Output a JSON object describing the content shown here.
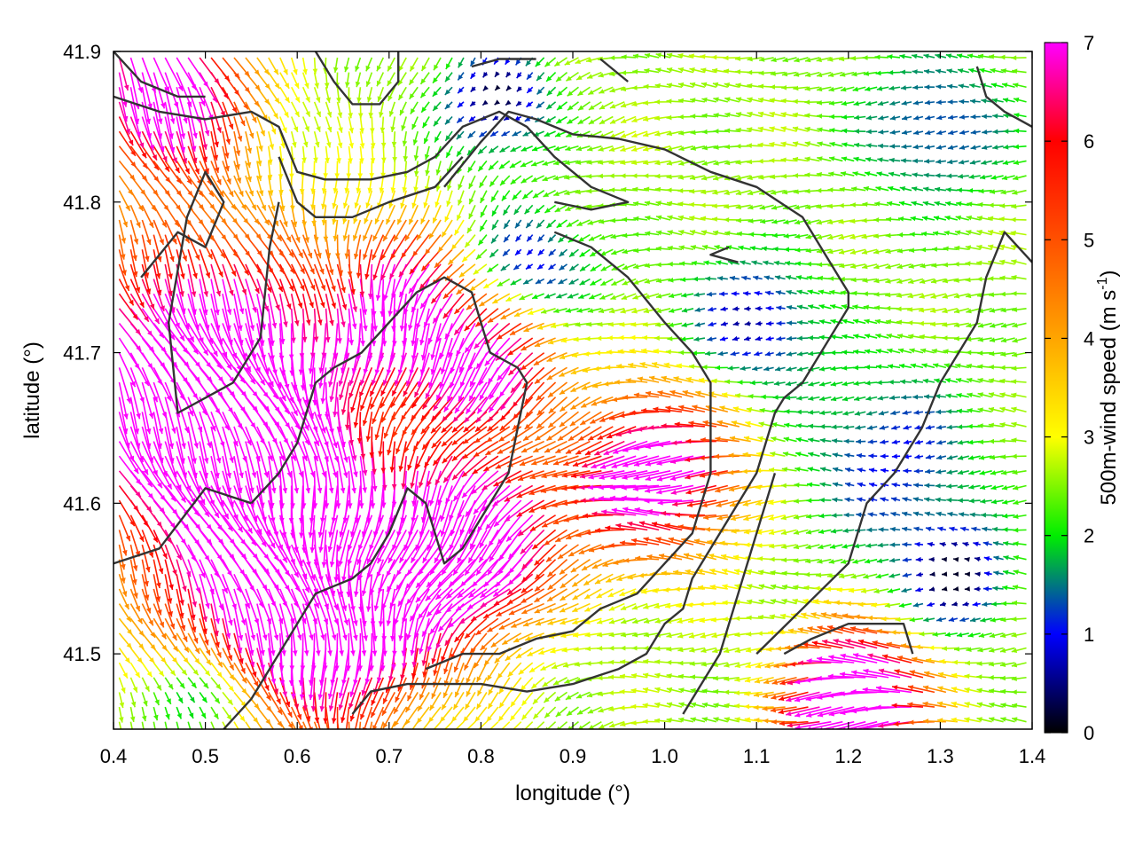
{
  "chart_data": {
    "type": "vector-field",
    "xlabel": "longitude (°)",
    "ylabel": "latitude (°)",
    "xlim": [
      0.4,
      1.4
    ],
    "ylim": [
      41.45,
      41.9
    ],
    "x_ticks": [
      0.4,
      0.5,
      0.6,
      0.7,
      0.8,
      0.9,
      1.0,
      1.1,
      1.2,
      1.3,
      1.4
    ],
    "x_tick_labels": [
      "0.4",
      "0.5",
      "0.6",
      "0.7",
      "0.8",
      "0.9",
      "1.0",
      "1.1",
      "1.2",
      "1.3",
      "1.4"
    ],
    "y_ticks": [
      41.5,
      41.6,
      41.7,
      41.8,
      41.9
    ],
    "y_tick_labels": [
      "41.5",
      "41.6",
      "41.7",
      "41.8",
      "41.9"
    ],
    "colorbar": {
      "label": "500m-wind speed (m s",
      "label_sup": "-1",
      "label_end": ")",
      "range": [
        0,
        7
      ],
      "ticks": [
        0,
        1,
        2,
        3,
        4,
        5,
        6,
        7
      ],
      "tick_labels": [
        "0",
        "1",
        "2",
        "3",
        "4",
        "5",
        "6",
        "7"
      ],
      "stops": [
        {
          "value": 0,
          "color": "#000000"
        },
        {
          "value": 1,
          "color": "#0000ff"
        },
        {
          "value": 2,
          "color": "#00ee00"
        },
        {
          "value": 3,
          "color": "#ffff00"
        },
        {
          "value": 4,
          "color": "#ffa500"
        },
        {
          "value": 5,
          "color": "#ff5000"
        },
        {
          "value": 6,
          "color": "#ff0000"
        },
        {
          "value": 7,
          "color": "#ff00ff"
        }
      ]
    },
    "grid": false,
    "wind_field_description": "Dense grid of wind arrows colored by 500 m wind speed; strong (~7 m/s) flow toward south-southeast in the western part, weaker westward flow (2-4 m/s) in the east.",
    "speed_centers": [
      {
        "lon": 0.5,
        "lat": 41.68,
        "speed": 7.5,
        "sigma": 0.11
      },
      {
        "lon": 0.62,
        "lat": 41.55,
        "speed": 7.0,
        "sigma": 0.1
      },
      {
        "lon": 0.8,
        "lat": 41.58,
        "speed": 6.5,
        "sigma": 0.06
      },
      {
        "lon": 1.22,
        "lat": 41.47,
        "speed": 7.0,
        "sigma": 0.05
      },
      {
        "lon": 1.0,
        "lat": 41.62,
        "speed": 5.8,
        "sigma": 0.06
      },
      {
        "lon": 0.72,
        "lat": 41.74,
        "speed": 5.2,
        "sigma": 0.05
      },
      {
        "lon": 0.82,
        "lat": 41.7,
        "speed": 5.5,
        "sigma": 0.05
      },
      {
        "lon": 0.45,
        "lat": 41.88,
        "speed": 5.5,
        "sigma": 0.06
      },
      {
        "lon": 0.85,
        "lat": 41.75,
        "speed": -2.5,
        "sigma": 0.05
      },
      {
        "lon": 0.82,
        "lat": 41.87,
        "speed": -2.5,
        "sigma": 0.04
      },
      {
        "lon": 1.1,
        "lat": 41.72,
        "speed": -2.0,
        "sigma": 0.05
      },
      {
        "lon": 1.25,
        "lat": 41.63,
        "speed": -1.6,
        "sigma": 0.07
      },
      {
        "lon": 1.32,
        "lat": 41.55,
        "speed": -2.5,
        "sigma": 0.04
      },
      {
        "lon": 0.5,
        "lat": 41.48,
        "speed": -2.5,
        "sigma": 0.04
      },
      {
        "lon": 1.3,
        "lat": 41.85,
        "speed": -1.5,
        "sigma": 0.06
      }
    ],
    "contours": [
      [
        [
          0.4,
          41.87
        ],
        [
          0.45,
          41.86
        ],
        [
          0.5,
          41.855
        ],
        [
          0.55,
          41.86
        ],
        [
          0.58,
          41.85
        ],
        [
          0.6,
          41.82
        ],
        [
          0.63,
          41.815
        ],
        [
          0.68,
          41.815
        ],
        [
          0.72,
          41.82
        ],
        [
          0.75,
          41.83
        ],
        [
          0.78,
          41.85
        ],
        [
          0.82,
          41.86
        ],
        [
          0.85,
          41.85
        ],
        [
          0.88,
          41.83
        ],
        [
          0.92,
          41.81
        ],
        [
          0.96,
          41.8
        ],
        [
          0.92,
          41.795
        ],
        [
          0.88,
          41.8
        ]
      ],
      [
        [
          0.4,
          41.9
        ],
        [
          0.43,
          41.88
        ],
        [
          0.47,
          41.87
        ],
        [
          0.5,
          41.87
        ]
      ],
      [
        [
          0.62,
          41.9
        ],
        [
          0.64,
          41.88
        ],
        [
          0.66,
          41.865
        ],
        [
          0.69,
          41.865
        ],
        [
          0.71,
          41.88
        ],
        [
          0.71,
          41.9
        ]
      ],
      [
        [
          0.79,
          41.89
        ],
        [
          0.82,
          41.895
        ],
        [
          0.86,
          41.895
        ]
      ],
      [
        [
          0.93,
          41.895
        ],
        [
          0.95,
          41.885
        ],
        [
          0.96,
          41.88
        ]
      ],
      [
        [
          0.76,
          41.81
        ],
        [
          0.8,
          41.84
        ],
        [
          0.83,
          41.86
        ],
        [
          0.86,
          41.855
        ],
        [
          0.9,
          41.845
        ],
        [
          0.95,
          41.842
        ],
        [
          1.0,
          41.835
        ],
        [
          1.05,
          41.82
        ],
        [
          1.1,
          41.81
        ],
        [
          1.15,
          41.79
        ],
        [
          1.17,
          41.77
        ],
        [
          1.19,
          41.75
        ],
        [
          1.2,
          41.74
        ],
        [
          1.2,
          41.73
        ],
        [
          1.17,
          41.7
        ],
        [
          1.15,
          41.68
        ],
        [
          1.13,
          41.67
        ],
        [
          1.12,
          41.66
        ],
        [
          1.1,
          41.62
        ],
        [
          1.07,
          41.59
        ],
        [
          1.05,
          41.57
        ],
        [
          1.03,
          41.55
        ],
        [
          1.02,
          41.53
        ],
        [
          1.0,
          41.52
        ],
        [
          0.98,
          41.5
        ],
        [
          0.95,
          41.49
        ],
        [
          0.9,
          41.48
        ],
        [
          0.85,
          41.475
        ],
        [
          0.8,
          41.48
        ],
        [
          0.76,
          41.48
        ],
        [
          0.72,
          41.48
        ],
        [
          0.68,
          41.475
        ],
        [
          0.66,
          41.46
        ]
      ],
      [
        [
          0.58,
          41.83
        ],
        [
          0.6,
          41.8
        ],
        [
          0.62,
          41.79
        ],
        [
          0.66,
          41.79
        ],
        [
          0.7,
          41.8
        ],
        [
          0.75,
          41.81
        ],
        [
          0.78,
          41.83
        ]
      ],
      [
        [
          0.55,
          41.6
        ],
        [
          0.58,
          41.62
        ],
        [
          0.6,
          41.64
        ],
        [
          0.62,
          41.68
        ],
        [
          0.64,
          41.69
        ],
        [
          0.67,
          41.7
        ],
        [
          0.7,
          41.72
        ],
        [
          0.73,
          41.74
        ],
        [
          0.76,
          41.75
        ],
        [
          0.79,
          41.74
        ],
        [
          0.81,
          41.7
        ],
        [
          0.84,
          41.69
        ],
        [
          0.85,
          41.68
        ],
        [
          0.83,
          41.62
        ],
        [
          0.8,
          41.59
        ],
        [
          0.78,
          41.57
        ],
        [
          0.76,
          41.56
        ],
        [
          0.74,
          41.6
        ],
        [
          0.72,
          41.61
        ],
        [
          0.7,
          41.58
        ],
        [
          0.68,
          41.56
        ],
        [
          0.66,
          41.55
        ],
        [
          0.62,
          41.54
        ],
        [
          0.58,
          41.5
        ],
        [
          0.55,
          41.47
        ],
        [
          0.52,
          41.45
        ]
      ],
      [
        [
          0.4,
          41.56
        ],
        [
          0.45,
          41.57
        ],
        [
          0.5,
          41.61
        ],
        [
          0.55,
          41.6
        ]
      ],
      [
        [
          0.43,
          41.75
        ],
        [
          0.47,
          41.78
        ],
        [
          0.5,
          41.77
        ],
        [
          0.52,
          41.8
        ],
        [
          0.5,
          41.82
        ],
        [
          0.48,
          41.79
        ],
        [
          0.46,
          41.72
        ],
        [
          0.47,
          41.66
        ],
        [
          0.53,
          41.68
        ],
        [
          0.56,
          41.71
        ],
        [
          0.57,
          41.77
        ],
        [
          0.58,
          41.8
        ]
      ],
      [
        [
          0.88,
          41.78
        ],
        [
          0.92,
          41.77
        ],
        [
          0.96,
          41.75
        ],
        [
          1.0,
          41.72
        ],
        [
          1.03,
          41.7
        ],
        [
          1.05,
          41.68
        ],
        [
          1.05,
          41.62
        ],
        [
          1.03,
          41.58
        ],
        [
          1.0,
          41.56
        ],
        [
          0.97,
          41.54
        ],
        [
          0.93,
          41.53
        ],
        [
          0.9,
          41.515
        ],
        [
          0.86,
          41.51
        ],
        [
          0.82,
          41.5
        ],
        [
          0.78,
          41.5
        ],
        [
          0.74,
          41.49
        ]
      ],
      [
        [
          1.1,
          41.5
        ],
        [
          1.15,
          41.53
        ],
        [
          1.2,
          41.56
        ],
        [
          1.22,
          41.6
        ],
        [
          1.25,
          41.62
        ],
        [
          1.28,
          41.65
        ],
        [
          1.3,
          41.68
        ],
        [
          1.32,
          41.7
        ],
        [
          1.34,
          41.72
        ],
        [
          1.35,
          41.75
        ],
        [
          1.37,
          41.78
        ],
        [
          1.4,
          41.76
        ]
      ],
      [
        [
          1.08,
          41.76
        ],
        [
          1.05,
          41.765
        ],
        [
          1.07,
          41.77
        ]
      ],
      [
        [
          1.13,
          41.5
        ],
        [
          1.16,
          41.51
        ],
        [
          1.2,
          41.52
        ],
        [
          1.23,
          41.52
        ],
        [
          1.26,
          41.52
        ],
        [
          1.27,
          41.5
        ]
      ],
      [
        [
          1.34,
          41.89
        ],
        [
          1.35,
          41.87
        ],
        [
          1.37,
          41.86
        ],
        [
          1.4,
          41.85
        ]
      ],
      [
        [
          1.02,
          41.46
        ],
        [
          1.06,
          41.5
        ],
        [
          1.08,
          41.54
        ],
        [
          1.1,
          41.58
        ],
        [
          1.12,
          41.62
        ]
      ]
    ]
  }
}
